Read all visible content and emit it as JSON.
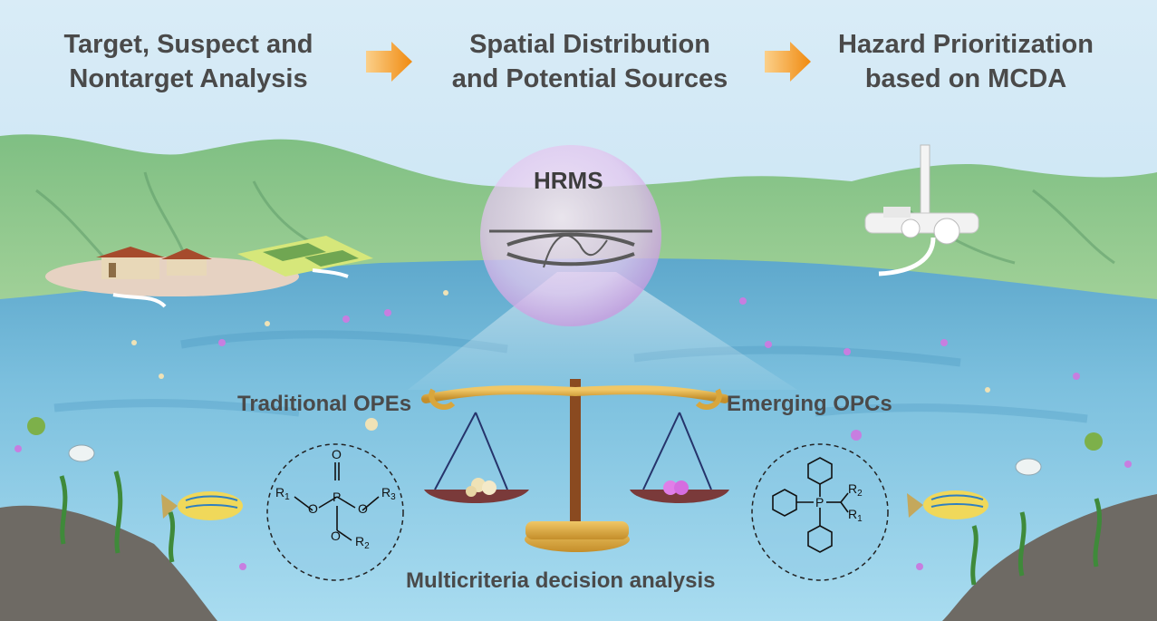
{
  "steps": [
    {
      "line1": "Target, Suspect and",
      "line2": "Nontarget Analysis"
    },
    {
      "line1": "Spatial Distribution",
      "line2": "and Potential Sources"
    },
    {
      "line1": "Hazard Prioritization",
      "line2": "based on MCDA"
    }
  ],
  "labels": {
    "hrms": "HRMS",
    "traditional": "Traditional OPEs",
    "emerging": "Emerging OPCs",
    "mcda": "Multicriteria decision analysis"
  },
  "structure_left": {
    "r1": "R",
    "r1_sub": "1",
    "r2": "R",
    "r2_sub": "2",
    "r3": "R",
    "r3_sub": "3",
    "p": "P",
    "o": "O"
  },
  "structure_right": {
    "r1": "R",
    "r1_sub": "1",
    "r2": "R",
    "r2_sub": "2",
    "p": "P"
  },
  "colors": {
    "sky": "#cfe6f3",
    "hills": "#8cc48f",
    "water": "#6fb4d6",
    "arrow": "#f39a1f",
    "text": "#4a4a4a",
    "scale_gold": "#d8a63c",
    "scale_pole": "#8a4a20",
    "particle_purple": "#c77ee0",
    "particle_cream": "#efe2b6"
  }
}
